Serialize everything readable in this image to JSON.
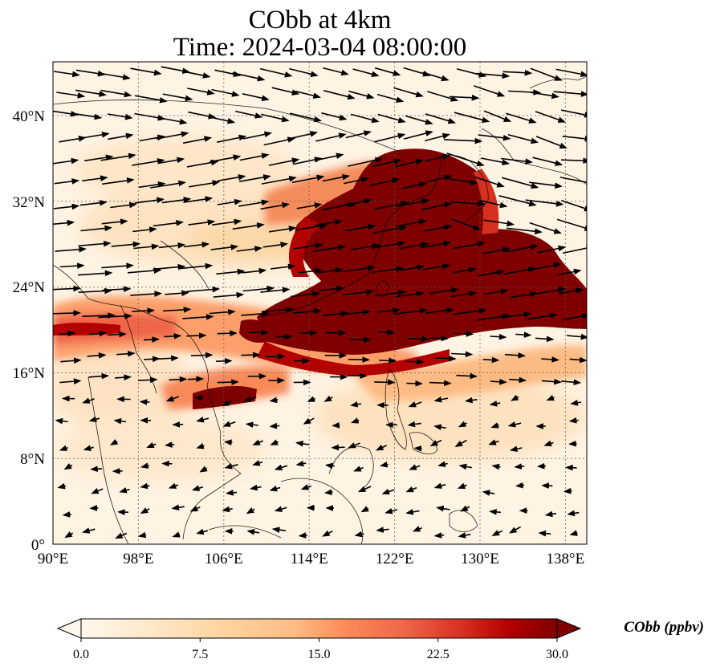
{
  "title": {
    "line1": "CObb at 4km",
    "line2": "Time: 2024-03-04 08:00:00"
  },
  "map": {
    "lon_ticks": [
      "90°E",
      "98°E",
      "106°E",
      "114°E",
      "122°E",
      "130°E",
      "138°E"
    ],
    "lat_ticks": [
      "40°N",
      "32°N",
      "24°N",
      "16°N",
      "8°N",
      "0°"
    ],
    "lon_values": [
      90,
      98,
      106,
      114,
      122,
      130,
      138
    ],
    "lat_values": [
      40,
      32,
      24,
      16,
      8,
      0
    ],
    "lon_range": [
      90,
      140
    ],
    "lat_range": [
      0,
      45
    ],
    "gridlines": true
  },
  "colorbar": {
    "label": "CObb (ppbv)",
    "ticks": [
      "0.0",
      "7.5",
      "15.0",
      "22.5",
      "30.0"
    ],
    "tick_values": [
      0,
      7.5,
      15,
      22.5,
      30
    ],
    "range": [
      0,
      30
    ],
    "colormap": "OrRd",
    "extend": "both"
  },
  "colors": {
    "low": "#fff7ec",
    "mid": "#fc8d59",
    "high": "#7f0000"
  }
}
